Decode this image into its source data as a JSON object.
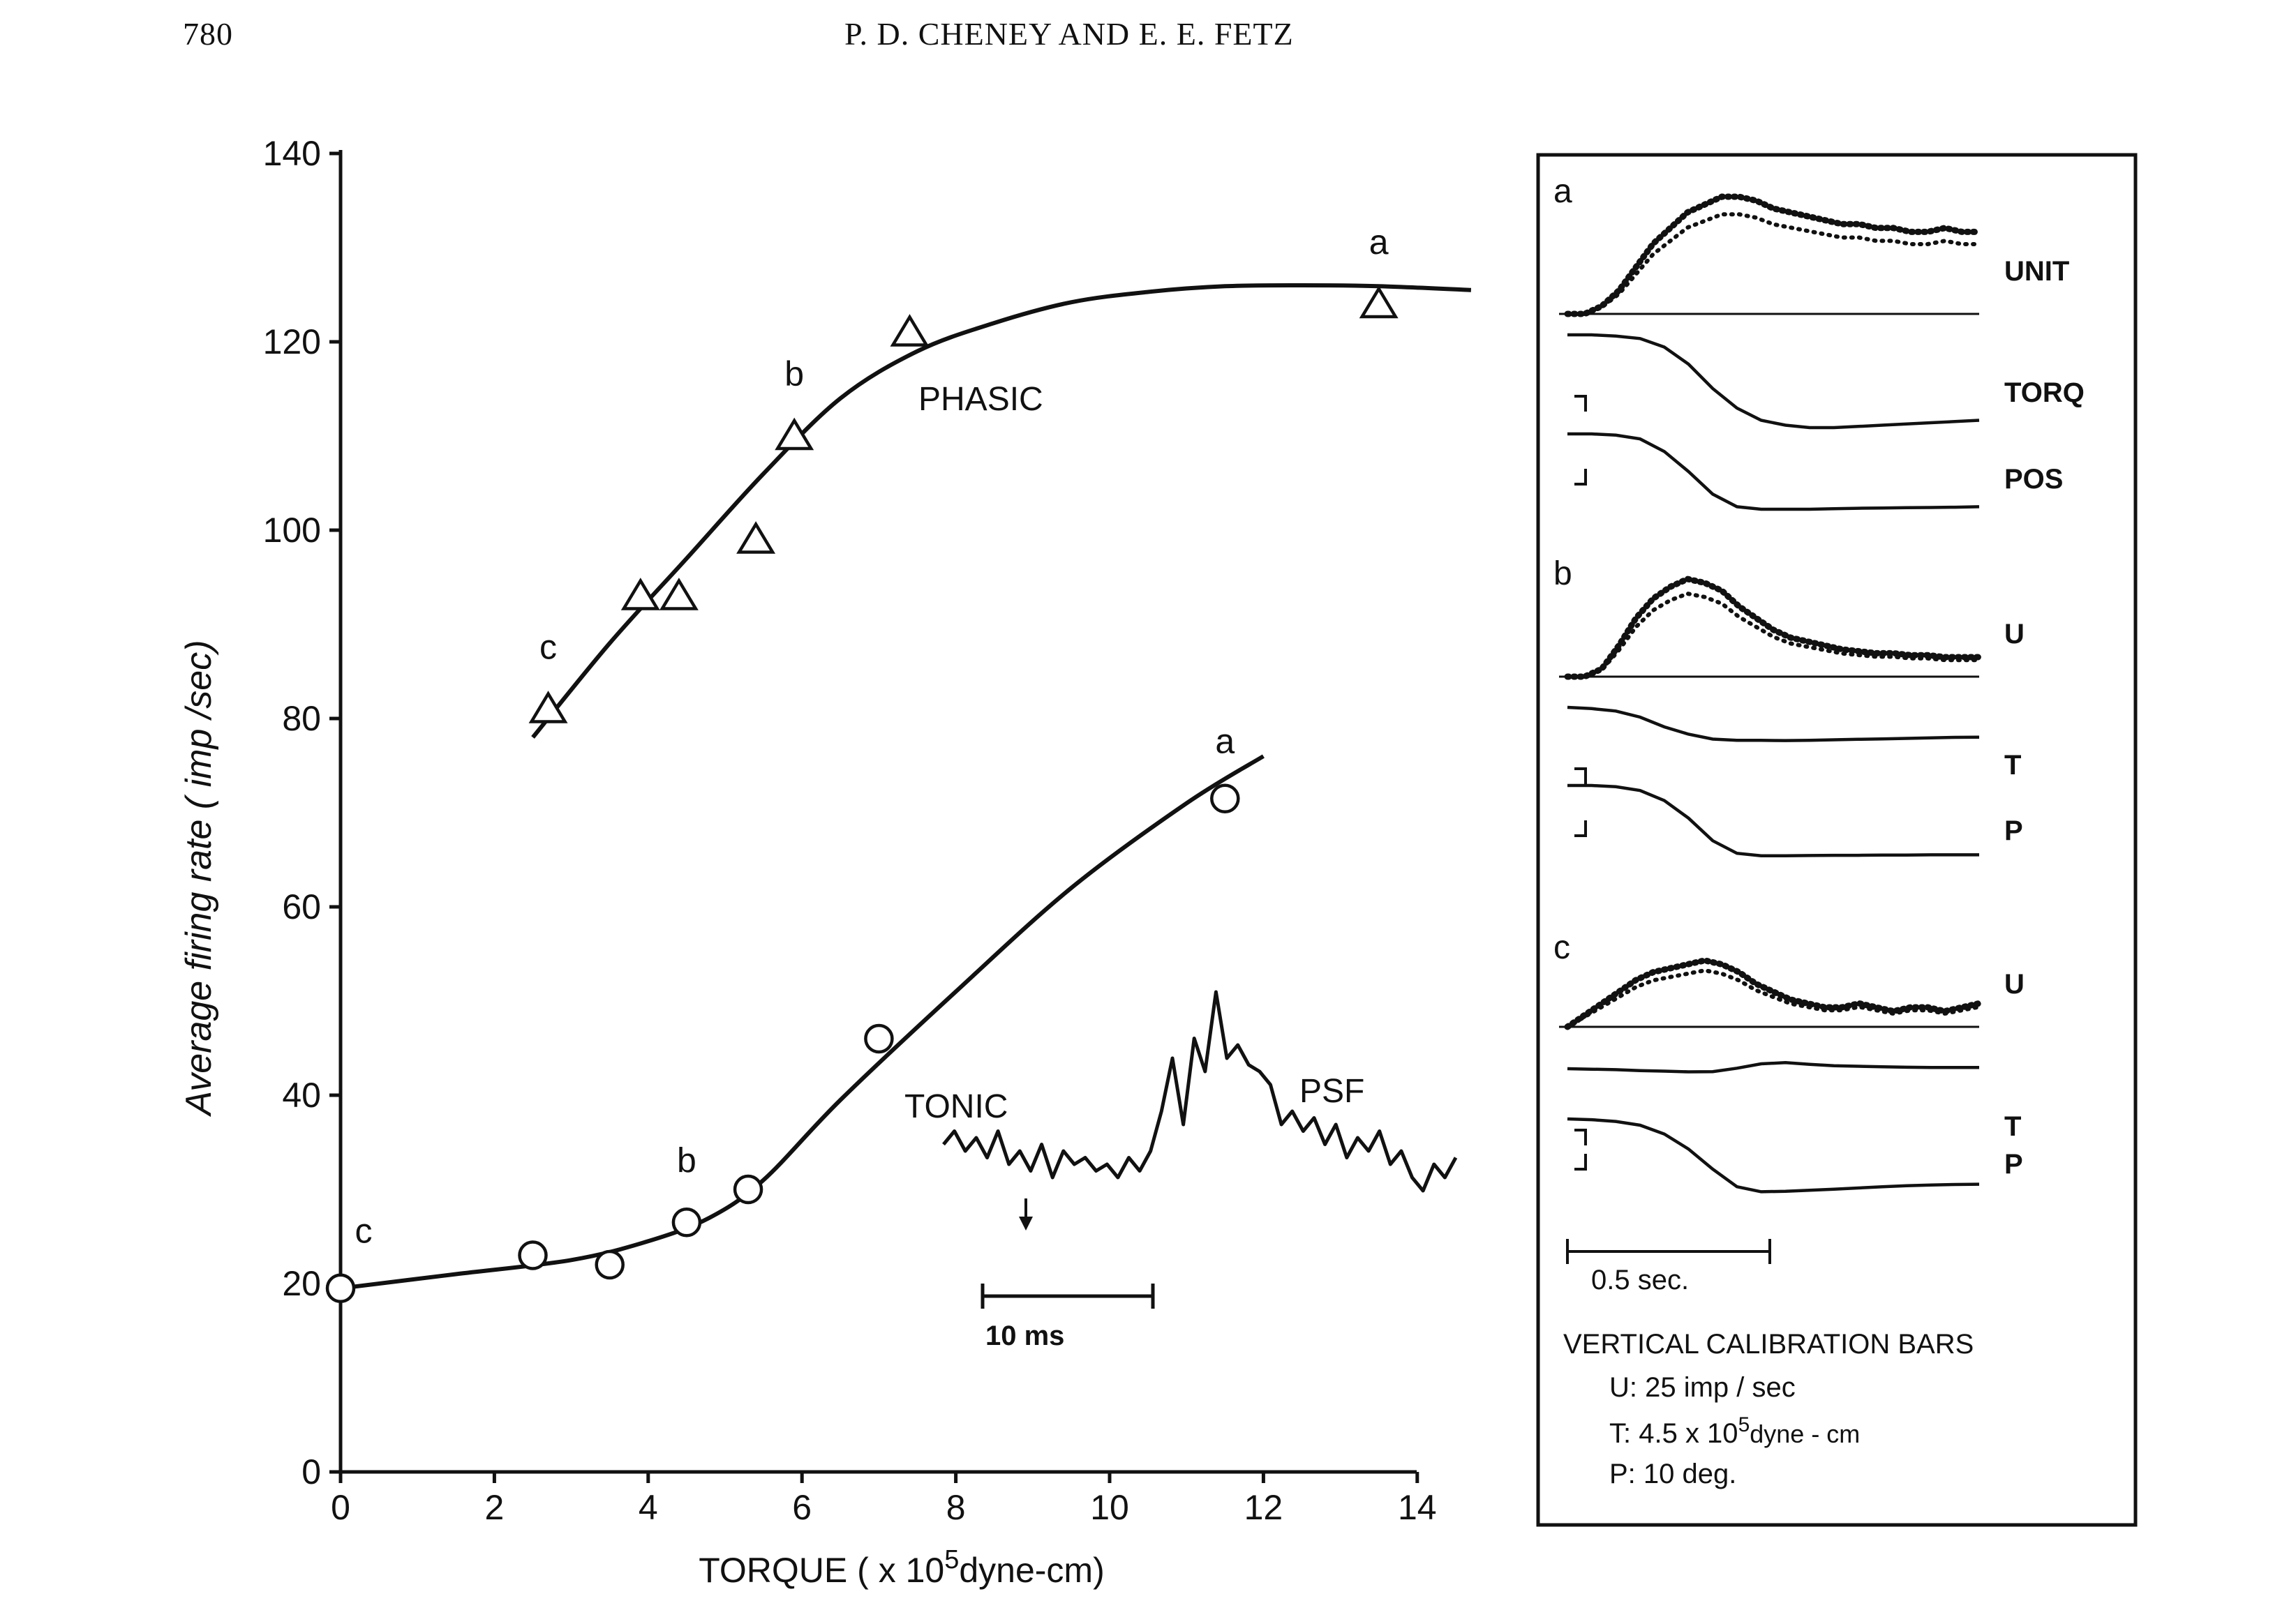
{
  "header": {
    "page_number": "780",
    "running_head": "P. D. CHENEY AND E. E. FETZ"
  },
  "chart_data": {
    "type": "scatter",
    "xlabel": {
      "text": "TORQUE ( x 10",
      "sup": "5",
      "rest": "dyne-cm)"
    },
    "ylabel": "Average firing rate ( imp /sec)",
    "xlim": [
      0,
      15
    ],
    "ylim": [
      0,
      140
    ],
    "x_ticks": [
      "0",
      "2",
      "4",
      "6",
      "8",
      "10",
      "12",
      "14"
    ],
    "x_tick_values": [
      0,
      2,
      4,
      6,
      8,
      10,
      12,
      14
    ],
    "y_ticks": [
      "0",
      "20",
      "40",
      "60",
      "80",
      "100",
      "120",
      "140"
    ],
    "y_tick_values": [
      0,
      20,
      40,
      60,
      80,
      100,
      120,
      140
    ],
    "series": [
      {
        "name": "PHASIC",
        "marker": "triangle",
        "points": [
          [
            2.7,
            81
          ],
          [
            3.9,
            93
          ],
          [
            4.4,
            93
          ],
          [
            5.4,
            99
          ],
          [
            5.9,
            110
          ],
          [
            7.4,
            121
          ],
          [
            13.5,
            124
          ]
        ],
        "curve": [
          [
            2.5,
            78
          ],
          [
            3.5,
            88
          ],
          [
            4.5,
            97
          ],
          [
            5.5,
            106
          ],
          [
            6.5,
            114
          ],
          [
            7.5,
            119
          ],
          [
            8.5,
            122
          ],
          [
            9.5,
            124.2
          ],
          [
            10.5,
            125.3
          ],
          [
            11.5,
            125.9
          ],
          [
            12.5,
            126
          ],
          [
            13.5,
            125.9
          ],
          [
            14.7,
            125.5
          ]
        ]
      },
      {
        "name": "TONIC",
        "marker": "circle",
        "points": [
          [
            0,
            19.5
          ],
          [
            2.5,
            23
          ],
          [
            3.5,
            22
          ],
          [
            4.5,
            26.5
          ],
          [
            5.3,
            30
          ],
          [
            7,
            46
          ],
          [
            11.5,
            71.5
          ]
        ],
        "curve": [
          [
            0,
            19.5
          ],
          [
            1.5,
            21
          ],
          [
            3,
            22.5
          ],
          [
            4,
            24.5
          ],
          [
            4.8,
            27
          ],
          [
            5.5,
            31
          ],
          [
            6.5,
            39.5
          ],
          [
            8,
            51
          ],
          [
            9.5,
            62
          ],
          [
            11,
            71
          ],
          [
            12,
            76
          ]
        ]
      }
    ],
    "point_labels": [
      {
        "text": "a",
        "series": "PHASIC",
        "x": 13.5,
        "y": 128
      },
      {
        "text": "b",
        "series": "PHASIC",
        "x": 5.9,
        "y": 114
      },
      {
        "text": "c",
        "series": "PHASIC",
        "x": 2.7,
        "y": 85
      },
      {
        "text": "a",
        "series": "TONIC",
        "x": 11.5,
        "y": 75
      },
      {
        "text": "b",
        "series": "TONIC",
        "x": 4.5,
        "y": 30.5
      },
      {
        "text": "c",
        "series": "TONIC",
        "x": 0.3,
        "y": 23
      }
    ]
  },
  "psf_inset": {
    "label": "PSF",
    "scale_label": "10 ms",
    "trace": [
      25,
      27,
      24,
      26,
      23,
      27,
      22,
      24,
      21,
      25,
      20,
      24,
      22,
      23,
      21,
      22,
      20,
      23,
      21,
      24,
      30,
      38,
      28,
      41,
      36,
      48,
      38,
      40,
      37,
      36,
      34,
      28,
      30,
      27,
      29,
      25,
      28,
      23,
      26,
      24,
      27,
      22,
      24,
      20,
      18,
      22,
      20,
      23
    ]
  },
  "right_panel": {
    "panels": [
      {
        "label": "a",
        "traces": [
          "UNIT",
          "TORQ",
          "POS"
        ],
        "unit": [
          0,
          0,
          2,
          6,
          12,
          18,
          22,
          26,
          28,
          30,
          30,
          29,
          27,
          26,
          25,
          24,
          23,
          23,
          22,
          22,
          21,
          21,
          22,
          21,
          21
        ],
        "torque": [
          0,
          0,
          0.5,
          1.5,
          5,
          12,
          22,
          30,
          35,
          37,
          38,
          38,
          37.5,
          37,
          36.5,
          36,
          35.5,
          35
        ],
        "position": [
          0,
          0,
          0.5,
          2,
          7,
          15,
          24,
          29,
          30,
          30,
          30,
          29.8,
          29.6,
          29.5,
          29.4,
          29.3,
          29.2,
          29
        ]
      },
      {
        "label": "b",
        "traces": [
          "U",
          "T",
          "P"
        ],
        "unit": [
          0,
          0,
          2,
          8,
          15,
          20,
          23,
          25,
          24,
          22,
          18,
          15,
          12,
          10,
          9,
          8,
          7,
          6.5,
          6,
          6,
          5.5,
          5.5,
          5,
          5,
          5
        ],
        "torque": [
          0,
          0.5,
          1.5,
          4,
          8,
          11,
          13,
          13.5,
          13.5,
          13.6,
          13.5,
          13.3,
          13.1,
          12.9,
          12.7,
          12.5,
          12.3,
          12.2
        ],
        "position": [
          0,
          0,
          0.5,
          2,
          6,
          13,
          22,
          27,
          28,
          28,
          27.9,
          27.8,
          27.8,
          27.7,
          27.7,
          27.6,
          27.6,
          27.6
        ]
      },
      {
        "label": "c",
        "traces": [
          "U",
          "T",
          "P"
        ],
        "unit": [
          0,
          3,
          6,
          9,
          12,
          14,
          15,
          16,
          17,
          16,
          14,
          11,
          9,
          7,
          6,
          5,
          5,
          6,
          5,
          4,
          5,
          5,
          4,
          5,
          6
        ],
        "torque": [
          0,
          0.2,
          0.4,
          0.8,
          1,
          1.3,
          1.2,
          -0.2,
          -2,
          -2.5,
          -1.8,
          -1.2,
          -1,
          -0.8,
          -0.6,
          -0.5,
          -0.5,
          -0.5
        ],
        "position": [
          0,
          0.3,
          1,
          2.5,
          6,
          12,
          20,
          27,
          29,
          28.8,
          28.4,
          28,
          27.5,
          27,
          26.6,
          26.3,
          26.1,
          26
        ]
      }
    ],
    "time_scale_label": "0.5 sec.",
    "calibration": {
      "title": "VERTICAL CALIBRATION BARS",
      "u": "U: 25 imp / sec",
      "t_prefix": "T: 4.5 x 10",
      "t_sup": "5",
      "t_suffix": "dyne - cm",
      "p": "P: 10 deg."
    }
  }
}
